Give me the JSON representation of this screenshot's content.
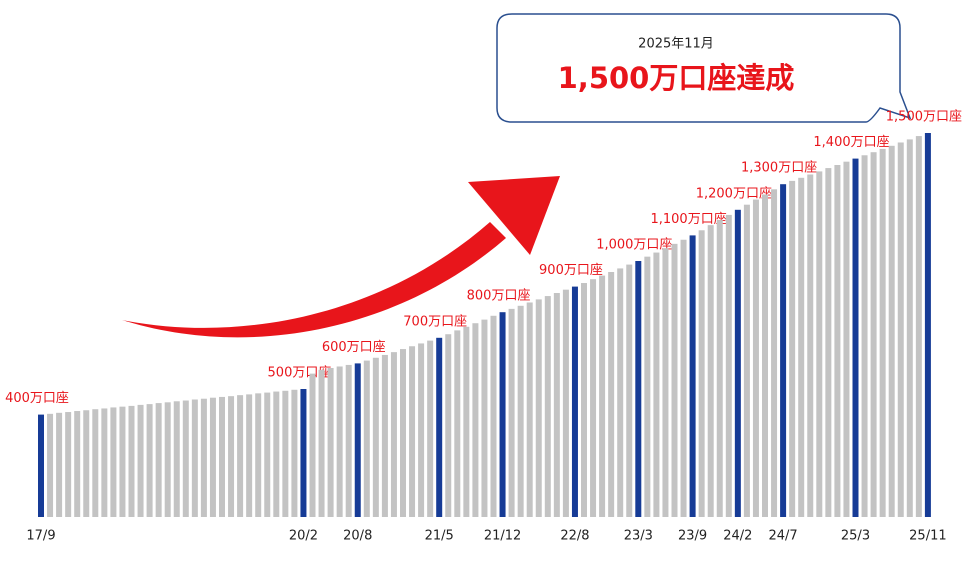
{
  "chart_data": {
    "type": "bar",
    "annotations": [
      "2025年11月",
      "1,500万口座達成"
    ],
    "categories": [
      "17/9",
      null,
      null,
      null,
      null,
      null,
      null,
      null,
      null,
      null,
      null,
      null,
      null,
      null,
      null,
      null,
      null,
      null,
      null,
      null,
      null,
      null,
      null,
      null,
      null,
      null,
      null,
      null,
      null,
      "20/2",
      null,
      null,
      null,
      null,
      null,
      "20/8",
      null,
      null,
      null,
      null,
      null,
      null,
      null,
      null,
      "21/5",
      null,
      null,
      null,
      null,
      null,
      null,
      "21/12",
      null,
      null,
      null,
      null,
      null,
      null,
      null,
      "22/8",
      null,
      null,
      null,
      null,
      null,
      null,
      "23/3",
      null,
      null,
      null,
      null,
      null,
      "23/9",
      null,
      null,
      null,
      null,
      "24/2",
      null,
      null,
      null,
      null,
      "24/7",
      null,
      null,
      null,
      null,
      null,
      null,
      null,
      "25/3",
      null,
      null,
      null,
      null,
      null,
      null,
      null,
      "25/11"
    ],
    "values": [
      400,
      403,
      407,
      410,
      414,
      417,
      421,
      424,
      428,
      431,
      434,
      438,
      441,
      445,
      448,
      452,
      455,
      459,
      462,
      466,
      469,
      472,
      476,
      479,
      483,
      486,
      490,
      493,
      497,
      500,
      560,
      575,
      582,
      588,
      594,
      600,
      611,
      622,
      633,
      644,
      656,
      667,
      678,
      689,
      700,
      714,
      729,
      743,
      757,
      771,
      786,
      800,
      813,
      825,
      838,
      850,
      863,
      875,
      888,
      900,
      914,
      929,
      943,
      957,
      971,
      986,
      1000,
      1017,
      1033,
      1050,
      1067,
      1083,
      1100,
      1120,
      1140,
      1160,
      1180,
      1200,
      1220,
      1240,
      1260,
      1280,
      1300,
      1313,
      1325,
      1338,
      1350,
      1363,
      1375,
      1388,
      1400,
      1413,
      1425,
      1438,
      1450,
      1463,
      1475,
      1488,
      1500
    ],
    "value_labels": [
      "400万口座",
      null,
      null,
      null,
      null,
      null,
      null,
      null,
      null,
      null,
      null,
      null,
      null,
      null,
      null,
      null,
      null,
      null,
      null,
      null,
      null,
      null,
      null,
      null,
      null,
      null,
      null,
      null,
      null,
      "500万口座",
      null,
      null,
      null,
      null,
      null,
      "600万口座",
      null,
      null,
      null,
      null,
      null,
      null,
      null,
      null,
      "700万口座",
      null,
      null,
      null,
      null,
      null,
      null,
      "800万口座",
      null,
      null,
      null,
      null,
      null,
      null,
      null,
      "900万口座",
      null,
      null,
      null,
      null,
      null,
      null,
      "1,000万口座",
      null,
      null,
      null,
      null,
      null,
      "1,100万口座",
      null,
      null,
      null,
      null,
      "1,200万口座",
      null,
      null,
      null,
      null,
      "1,300万口座",
      null,
      null,
      null,
      null,
      null,
      null,
      null,
      "1,400万口座",
      null,
      null,
      null,
      null,
      null,
      null,
      null,
      "1,500万口座"
    ],
    "color": "#c3c3c3",
    "highlight_color": "#163b96",
    "ylim": [
      0,
      2000
    ]
  }
}
